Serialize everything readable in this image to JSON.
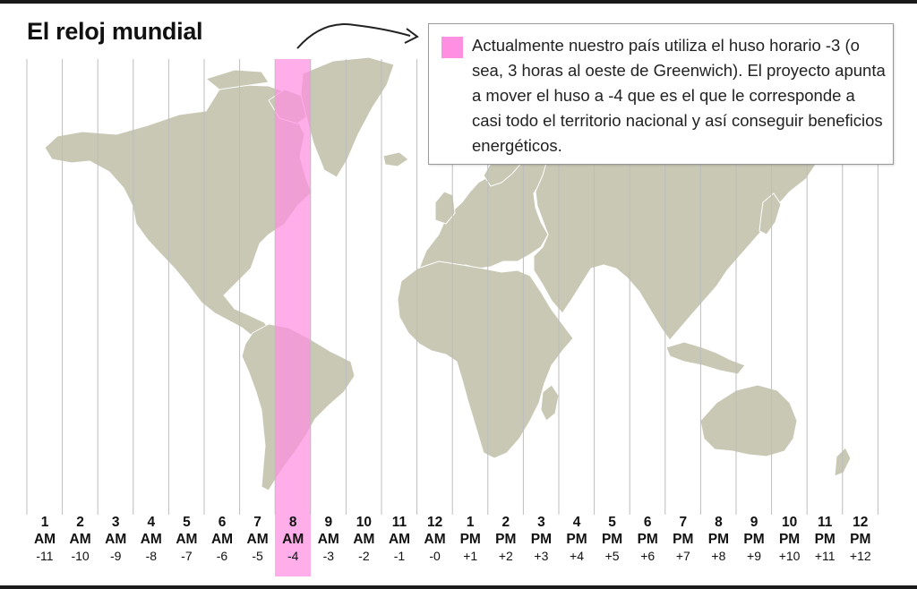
{
  "title": "El reloj mundial",
  "legend": {
    "text": "Actualmente nuestro país utiliza el huso horario -3 (o sea, 3 horas al oeste de Greenwich). El proyecto apunta a mover el huso a -4 que es el que le corresponde a casi todo el territorio nacional y así conseguir beneficios energéticos.",
    "swatch_color": "#ff8fe0"
  },
  "highlight_offset": "-4",
  "colors": {
    "land": "#c9c8b5",
    "highlight": "#ff8fe0",
    "grid": "#bdbdbd",
    "border": "#ffffff"
  },
  "zones": [
    {
      "hour": "1",
      "meridiem": "AM",
      "offset": "-11"
    },
    {
      "hour": "2",
      "meridiem": "AM",
      "offset": "-10"
    },
    {
      "hour": "3",
      "meridiem": "AM",
      "offset": "-9"
    },
    {
      "hour": "4",
      "meridiem": "AM",
      "offset": "-8"
    },
    {
      "hour": "5",
      "meridiem": "AM",
      "offset": "-7"
    },
    {
      "hour": "6",
      "meridiem": "AM",
      "offset": "-6"
    },
    {
      "hour": "7",
      "meridiem": "AM",
      "offset": "-5"
    },
    {
      "hour": "8",
      "meridiem": "AM",
      "offset": "-4"
    },
    {
      "hour": "9",
      "meridiem": "AM",
      "offset": "-3"
    },
    {
      "hour": "10",
      "meridiem": "AM",
      "offset": "-2"
    },
    {
      "hour": "11",
      "meridiem": "AM",
      "offset": "-1"
    },
    {
      "hour": "12",
      "meridiem": "AM",
      "offset": "-0"
    },
    {
      "hour": "1",
      "meridiem": "PM",
      "offset": "+1"
    },
    {
      "hour": "2",
      "meridiem": "PM",
      "offset": "+2"
    },
    {
      "hour": "3",
      "meridiem": "PM",
      "offset": "+3"
    },
    {
      "hour": "4",
      "meridiem": "PM",
      "offset": "+4"
    },
    {
      "hour": "5",
      "meridiem": "PM",
      "offset": "+5"
    },
    {
      "hour": "6",
      "meridiem": "PM",
      "offset": "+6"
    },
    {
      "hour": "7",
      "meridiem": "PM",
      "offset": "+7"
    },
    {
      "hour": "8",
      "meridiem": "PM",
      "offset": "+8"
    },
    {
      "hour": "9",
      "meridiem": "PM",
      "offset": "+9"
    },
    {
      "hour": "10",
      "meridiem": "PM",
      "offset": "+10"
    },
    {
      "hour": "11",
      "meridiem": "PM",
      "offset": "+11"
    },
    {
      "hour": "12",
      "meridiem": "PM",
      "offset": "+12"
    }
  ]
}
